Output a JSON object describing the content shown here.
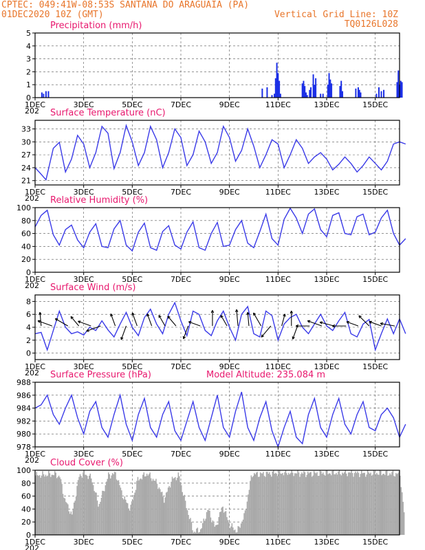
{
  "header": {
    "line1_left": "CPTEC:  049:41W-08:53S  SANTANA DO ARAGUAIA (PA)",
    "line2_left": "01DEC2020 10Z (GMT)",
    "line2_right": "Vertical Grid Line: 10Z",
    "line3_right": "TQ0126L028"
  },
  "colors": {
    "header": "#e8752a",
    "title": "#e8186e",
    "line": "#3a3ae8",
    "bar": "#1a2ee6",
    "cloud": "#a9a9a9"
  },
  "x_axis": {
    "ticks": [
      "1DEC",
      "3DEC",
      "5DEC",
      "7DEC",
      "9DEC",
      "11DEC",
      "13DEC",
      "15DEC"
    ],
    "tick_days": [
      0,
      2,
      4,
      6,
      8,
      10,
      12,
      14
    ],
    "range_days": [
      0,
      15
    ],
    "year_label": "202"
  },
  "chart_data": [
    {
      "type": "bar",
      "title": "Precipitation (mm/h)",
      "ylim": [
        0,
        5
      ],
      "yticks": [
        0,
        1,
        2,
        3,
        4,
        5
      ],
      "x_days": [
        0.28,
        0.35,
        0.45,
        0.55,
        9.35,
        9.55,
        9.75,
        9.85,
        9.9,
        9.95,
        10.0,
        10.05,
        10.1,
        11.0,
        11.05,
        11.1,
        11.15,
        11.2,
        11.3,
        11.35,
        11.45,
        11.5,
        11.55,
        11.75,
        11.85,
        12.05,
        12.1,
        12.15,
        12.2,
        12.55,
        12.6,
        12.65,
        13.2,
        13.3,
        13.35,
        13.4,
        14.05,
        14.15,
        14.25,
        14.35,
        14.9,
        14.95,
        15.0,
        15.05,
        15.1
      ],
      "values": [
        0.4,
        0.3,
        0.5,
        0.5,
        0.7,
        0.8,
        0.2,
        0.3,
        1.5,
        2.7,
        1.9,
        1.3,
        0.3,
        1.1,
        1.3,
        0.9,
        0.4,
        0.2,
        0.6,
        0.8,
        1.8,
        1.0,
        1.5,
        0.3,
        0.3,
        1.0,
        1.9,
        1.4,
        1.1,
        0.9,
        1.3,
        0.5,
        0.7,
        0.8,
        0.6,
        0.4,
        0.3,
        0.8,
        0.5,
        0.6,
        1.2,
        2.1,
        1.0,
        1.3,
        1.2
      ]
    },
    {
      "type": "line",
      "title": "Surface Temperature (nC)",
      "ylim": [
        20,
        35
      ],
      "yticks": [
        21,
        24,
        27,
        30,
        33
      ],
      "x": [
        0.0,
        0.2,
        0.45,
        0.75,
        1.0,
        1.25,
        1.5,
        1.75,
        2.0,
        2.25,
        2.5,
        2.75,
        3.0,
        3.25,
        3.5,
        3.75,
        4.0,
        4.25,
        4.5,
        4.75,
        5.0,
        5.25,
        5.5,
        5.75,
        6.0,
        6.25,
        6.5,
        6.75,
        7.0,
        7.25,
        7.5,
        7.75,
        8.0,
        8.25,
        8.5,
        8.75,
        9.0,
        9.25,
        9.5,
        9.75,
        10.0,
        10.25,
        10.5,
        10.75,
        11.0,
        11.25,
        11.5,
        11.75,
        12.0,
        12.25,
        12.5,
        12.75,
        13.0,
        13.25,
        13.5,
        13.75,
        14.0,
        14.25,
        14.5,
        14.75,
        15.0,
        15.25
      ],
      "values": [
        24.0,
        22.8,
        21.2,
        28.5,
        29.9,
        23.0,
        26.0,
        31.5,
        29.5,
        24.0,
        27.5,
        33.6,
        32.0,
        23.8,
        27.5,
        33.8,
        30.0,
        24.5,
        27.5,
        33.6,
        30.5,
        24.0,
        27.5,
        33.0,
        31.0,
        24.5,
        27.0,
        32.5,
        30.0,
        25.0,
        27.5,
        33.6,
        31.0,
        25.5,
        28.0,
        33.0,
        29.0,
        24.0,
        27.0,
        30.5,
        29.5,
        24.0,
        27.0,
        30.5,
        28.5,
        25.0,
        26.5,
        27.5,
        26.0,
        23.5,
        24.8,
        26.5,
        25.0,
        23.0,
        24.5,
        26.5,
        25.0,
        23.5,
        25.5,
        29.5,
        30.0,
        29.5
      ]
    },
    {
      "type": "line",
      "title": "Relative Humidity (%)",
      "ylim": [
        0,
        100
      ],
      "yticks": [
        0,
        20,
        40,
        60,
        80,
        100
      ],
      "x": [
        0.0,
        0.25,
        0.5,
        0.75,
        1.0,
        1.25,
        1.5,
        1.75,
        2.0,
        2.25,
        2.5,
        2.75,
        3.0,
        3.25,
        3.5,
        3.75,
        4.0,
        4.25,
        4.5,
        4.75,
        5.0,
        5.25,
        5.5,
        5.75,
        6.0,
        6.25,
        6.5,
        6.75,
        7.0,
        7.25,
        7.5,
        7.75,
        8.0,
        8.25,
        8.5,
        8.75,
        9.0,
        9.25,
        9.5,
        9.75,
        10.0,
        10.25,
        10.5,
        10.75,
        11.0,
        11.25,
        11.5,
        11.75,
        12.0,
        12.25,
        12.5,
        12.75,
        13.0,
        13.25,
        13.5,
        13.75,
        14.0,
        14.25,
        14.5,
        14.75,
        15.0,
        15.25
      ],
      "values": [
        70.0,
        88.0,
        96.0,
        58.0,
        42.0,
        66.0,
        73.0,
        50.0,
        38.0,
        62.0,
        75.0,
        40.0,
        38.0,
        67.0,
        80.0,
        42.0,
        33.0,
        62.0,
        76.0,
        38.0,
        34.0,
        63.0,
        72.0,
        42.0,
        36.0,
        62.0,
        78.0,
        38.0,
        34.0,
        60.0,
        77.0,
        40.0,
        42.0,
        66.0,
        80.0,
        45.0,
        38.0,
        63.0,
        90.0,
        52.0,
        42.0,
        82.0,
        99.0,
        84.0,
        60.0,
        90.0,
        98.0,
        66.0,
        55.0,
        88.0,
        92.0,
        60.0,
        58.0,
        86.0,
        90.0,
        58.0,
        62.0,
        84.0,
        96.0,
        60.0,
        42.0,
        52.0
      ]
    },
    {
      "type": "line",
      "title": "Surface Wind (m/s)",
      "ylim": [
        -1,
        9
      ],
      "yticks": [
        0,
        2,
        4,
        6,
        8
      ],
      "x": [
        0.0,
        0.25,
        0.5,
        0.75,
        1.0,
        1.25,
        1.5,
        1.75,
        2.0,
        2.25,
        2.5,
        2.75,
        3.0,
        3.25,
        3.5,
        3.75,
        4.0,
        4.25,
        4.5,
        4.75,
        5.0,
        5.25,
        5.5,
        5.75,
        6.0,
        6.25,
        6.5,
        6.75,
        7.0,
        7.25,
        7.5,
        7.75,
        8.0,
        8.25,
        8.5,
        8.75,
        9.0,
        9.25,
        9.5,
        9.75,
        10.0,
        10.25,
        10.5,
        10.75,
        11.0,
        11.25,
        11.5,
        11.75,
        12.0,
        12.25,
        12.5,
        12.75,
        13.0,
        13.25,
        13.5,
        13.75,
        14.0,
        14.25,
        14.5,
        14.75,
        15.0,
        15.25
      ],
      "values": [
        3.0,
        3.2,
        0.5,
        3.5,
        6.5,
        4.0,
        3.0,
        3.3,
        2.8,
        4.0,
        3.5,
        5.0,
        3.6,
        2.5,
        4.5,
        6.3,
        4.0,
        2.7,
        5.5,
        6.8,
        4.5,
        3.0,
        6.0,
        7.8,
        5.0,
        2.7,
        6.5,
        6.0,
        3.5,
        2.7,
        5.0,
        6.5,
        4.0,
        2.0,
        6.0,
        7.2,
        3.0,
        2.5,
        6.5,
        5.8,
        2.0,
        4.5,
        5.5,
        6.0,
        4.0,
        3.0,
        4.5,
        6.0,
        4.2,
        3.5,
        5.0,
        6.3,
        3.0,
        2.5,
        4.5,
        5.2,
        0.5,
        3.0,
        5.3,
        3.0,
        5.3,
        3.0
      ],
      "arrow_days": [
        0.25,
        0.7,
        1.35,
        1.8,
        2.3,
        2.7,
        3.3,
        3.75,
        4.2,
        4.8,
        5.35,
        5.8,
        6.3,
        6.8,
        7.3,
        7.9,
        8.35,
        8.8,
        9.3,
        9.7,
        10.15,
        10.55,
        10.8,
        11.3,
        11.8,
        12.3,
        12.8,
        13.3,
        13.75,
        14.25,
        14.8
      ],
      "arrow_speed": [
        3.5,
        4.0,
        3.8,
        3.0,
        3.5,
        4.0,
        3.2,
        3.8,
        3.6,
        3.2,
        3.0,
        3.2,
        3.5,
        3.0,
        4.2,
        3.0,
        4.5,
        3.5,
        4.0,
        3.8,
        3.0,
        4.0,
        3.6,
        3.5,
        4.0,
        3.8,
        3.5,
        3.0,
        3.8,
        3.2,
        3.8
      ],
      "arrow_dir_deg": [
        -95,
        200,
        210,
        230,
        200,
        160,
        250,
        110,
        250,
        250,
        240,
        230,
        110,
        200,
        270,
        240,
        265,
        265,
        240,
        130,
        -75,
        270,
        110,
        180,
        200,
        195,
        180,
        200,
        225,
        200,
        190
      ]
    },
    {
      "type": "line",
      "title": "Surface Pressure (hPa)",
      "subtitle": "Model Altitude: 235.084 m",
      "ylim": [
        978,
        988
      ],
      "yticks": [
        978,
        980,
        982,
        984,
        986,
        988
      ],
      "x": [
        0.0,
        0.25,
        0.5,
        0.75,
        1.0,
        1.25,
        1.5,
        1.75,
        2.0,
        2.25,
        2.5,
        2.75,
        3.0,
        3.25,
        3.5,
        3.75,
        4.0,
        4.25,
        4.5,
        4.75,
        5.0,
        5.25,
        5.5,
        5.75,
        6.0,
        6.25,
        6.5,
        6.75,
        7.0,
        7.25,
        7.5,
        7.75,
        8.0,
        8.25,
        8.5,
        8.75,
        9.0,
        9.25,
        9.5,
        9.75,
        10.0,
        10.25,
        10.5,
        10.75,
        11.0,
        11.25,
        11.5,
        11.75,
        12.0,
        12.25,
        12.5,
        12.75,
        13.0,
        13.25,
        13.5,
        13.75,
        14.0,
        14.25,
        14.5,
        14.75,
        15.0,
        15.25
      ],
      "values": [
        984.0,
        984.5,
        986.0,
        983.0,
        981.5,
        984.0,
        986.0,
        982.5,
        980.0,
        983.5,
        985.0,
        981.0,
        979.5,
        983.0,
        986.0,
        981.5,
        979.0,
        983.0,
        985.5,
        981.0,
        979.5,
        983.0,
        985.0,
        980.5,
        979.0,
        982.0,
        985.0,
        981.0,
        979.0,
        982.5,
        986.0,
        981.0,
        979.5,
        983.5,
        986.5,
        981.0,
        979.0,
        982.5,
        985.0,
        980.5,
        978.0,
        981.0,
        983.5,
        979.5,
        978.5,
        983.0,
        985.5,
        981.0,
        979.5,
        983.0,
        985.5,
        981.5,
        980.0,
        983.0,
        985.0,
        981.0,
        980.5,
        983.0,
        984.0,
        982.5,
        979.5,
        981.5
      ]
    },
    {
      "type": "bar",
      "title": "Cloud Cover (%)",
      "ylim": [
        0,
        100
      ],
      "yticks": [
        0,
        20,
        40,
        60,
        80,
        100
      ],
      "knots_x": [
        0.0,
        0.8,
        1.0,
        1.2,
        1.5,
        1.8,
        2.0,
        2.3,
        2.6,
        3.0,
        3.3,
        3.6,
        3.9,
        4.2,
        4.6,
        5.0,
        5.3,
        5.6,
        5.9,
        6.2,
        6.5,
        6.8,
        7.1,
        7.4,
        7.7,
        8.0,
        8.3,
        8.6,
        8.9,
        9.2,
        9.6,
        10.0,
        10.5,
        11.0,
        11.5,
        12.0,
        12.5,
        13.0,
        13.5,
        14.0,
        14.5,
        15.0,
        15.25
      ],
      "knots_y": [
        92,
        94,
        90,
        55,
        30,
        92,
        95,
        88,
        45,
        92,
        95,
        60,
        40,
        85,
        95,
        80,
        55,
        85,
        92,
        45,
        5,
        8,
        40,
        10,
        45,
        15,
        5,
        30,
        94,
        94,
        95,
        96,
        96,
        95,
        95,
        96,
        96,
        96,
        95,
        96,
        95,
        94,
        5
      ]
    }
  ]
}
